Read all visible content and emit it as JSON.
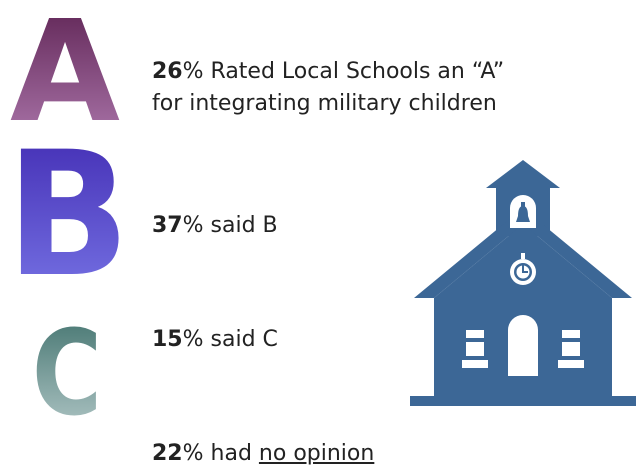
{
  "letters": {
    "a": {
      "char": "A",
      "color_top": "#5a1f4f",
      "color_bottom": "#b07bb0"
    },
    "b": {
      "char": "B",
      "color_top": "#3f28b0",
      "color_bottom": "#7a78e8"
    },
    "c": {
      "char": "C",
      "color_top": "#3d6f6a",
      "color_bottom": "#b8cccc"
    }
  },
  "stats": {
    "a": {
      "pct": "26",
      "sign": "%",
      "line1": " Rated Local Schools an “A”",
      "line2": "for integrating military children"
    },
    "b": {
      "pct": "37",
      "sign": "%",
      "text": " said B"
    },
    "c": {
      "pct": "15",
      "sign": "%",
      "text": " said C"
    },
    "none": {
      "pct": "22",
      "sign": "%",
      "text_before": " had ",
      "underlined": "no opinion"
    }
  },
  "illustration": {
    "name": "schoolhouse-icon",
    "color": "#3c6796"
  }
}
